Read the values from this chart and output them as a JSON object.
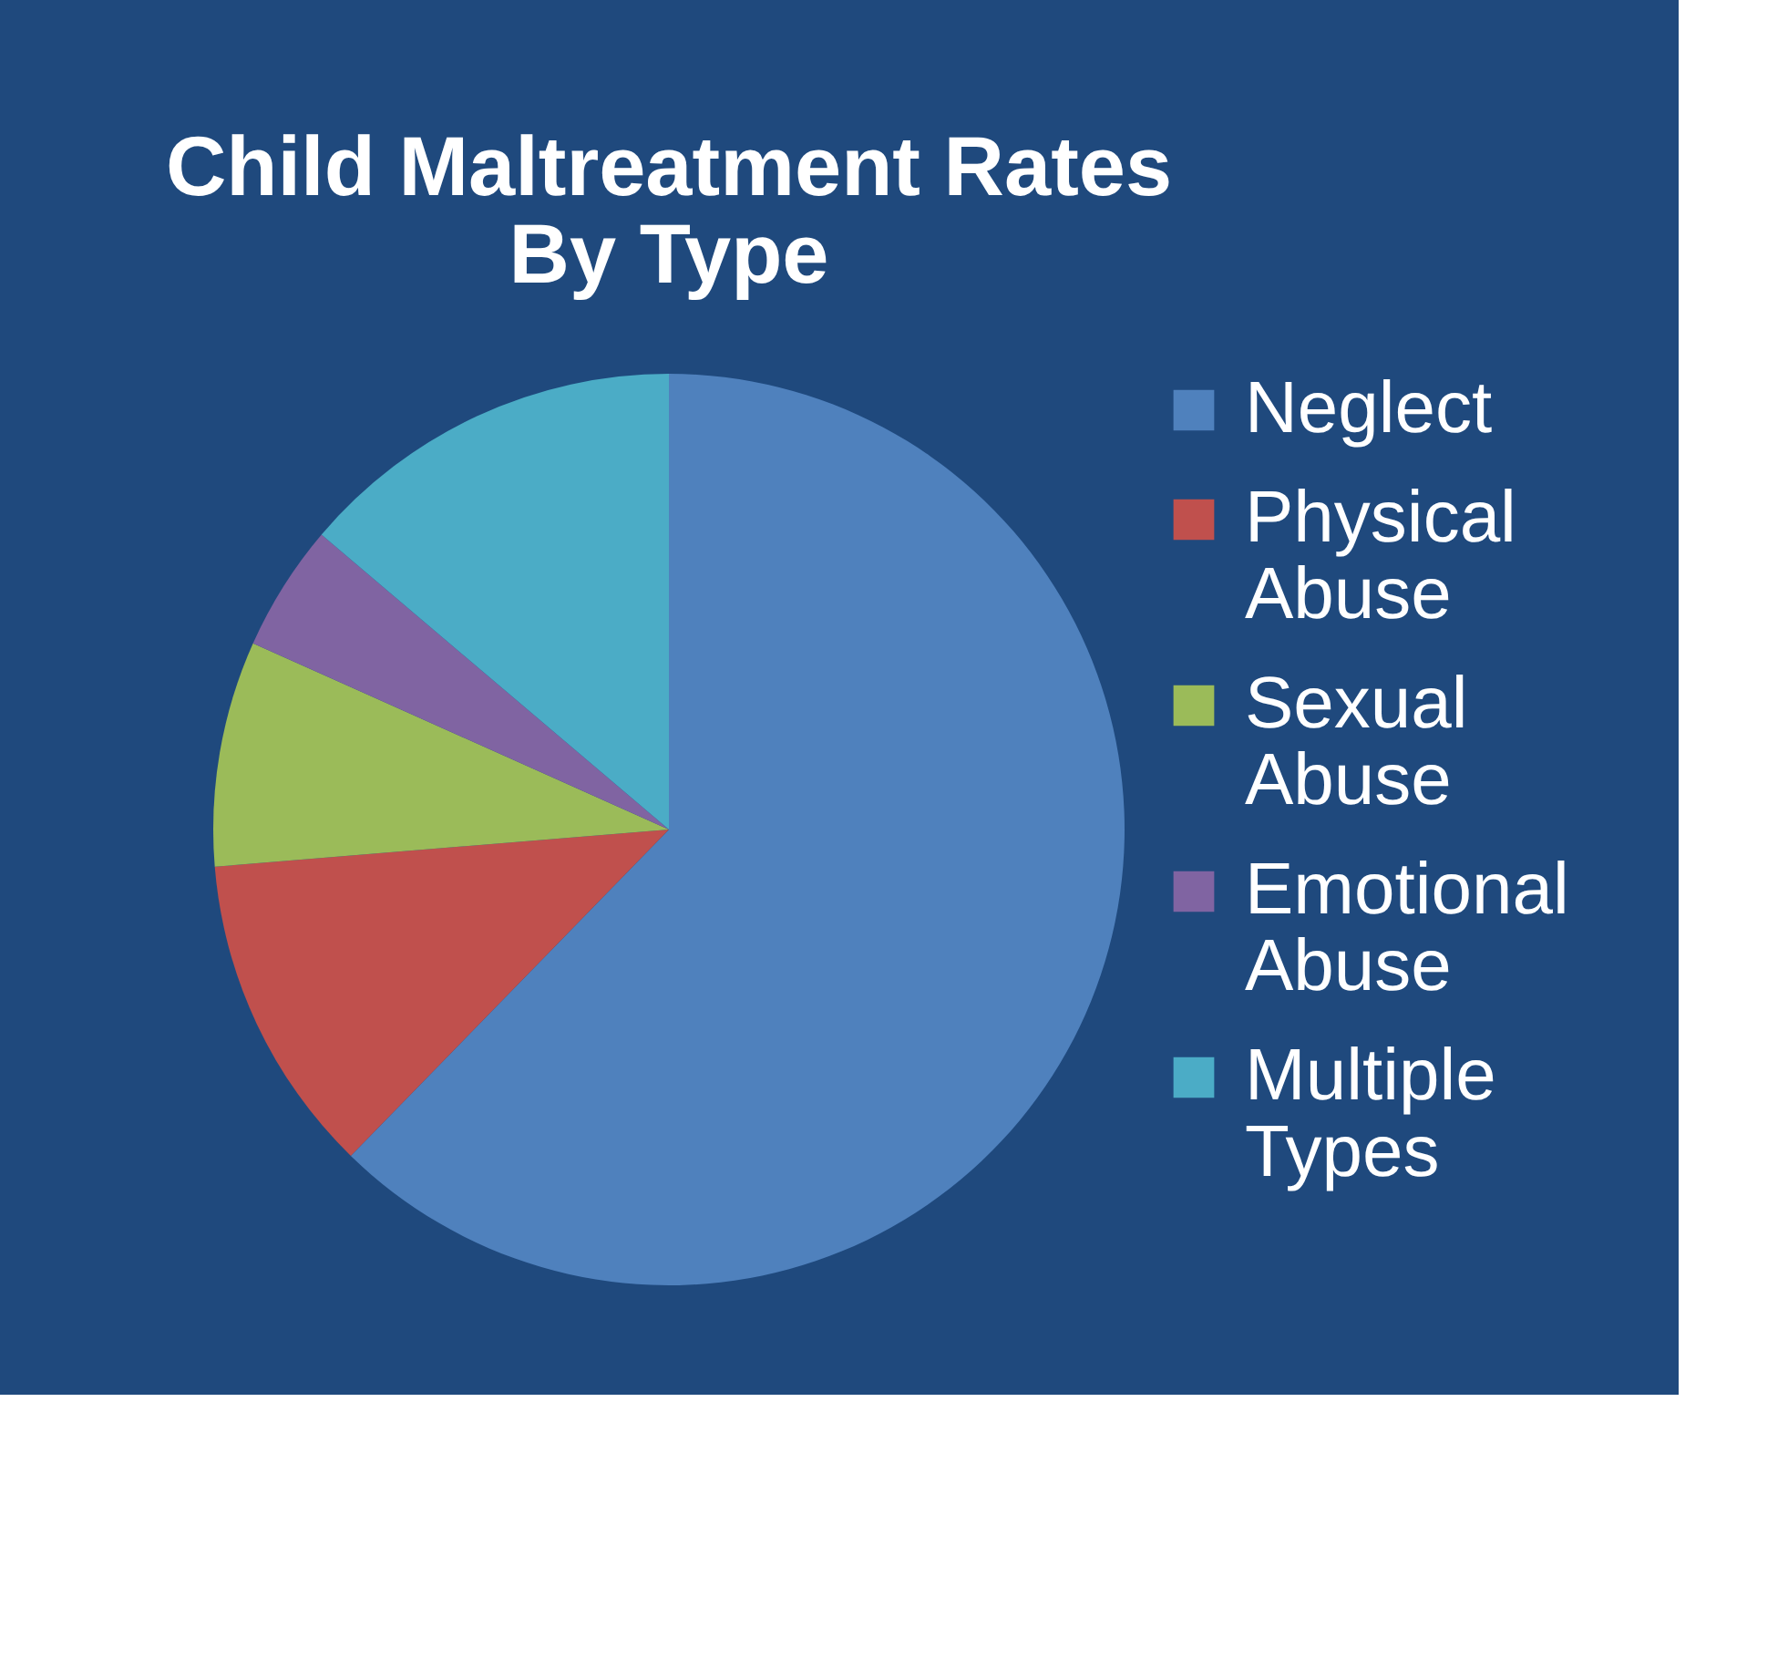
{
  "chart_data": {
    "type": "pie",
    "title": "Child Maltreatment Rates By Type",
    "categories": [
      "Neglect",
      "Physical Abuse",
      "Sexual Abuse",
      "Emotional Abuse",
      "Multiple Types"
    ],
    "values": [
      62.3,
      11.4,
      8.0,
      4.5,
      13.8
    ],
    "colors": [
      "#4f81bd",
      "#c0504d",
      "#9bbb59",
      "#8064a2",
      "#4bacc6"
    ],
    "legend": "right"
  }
}
